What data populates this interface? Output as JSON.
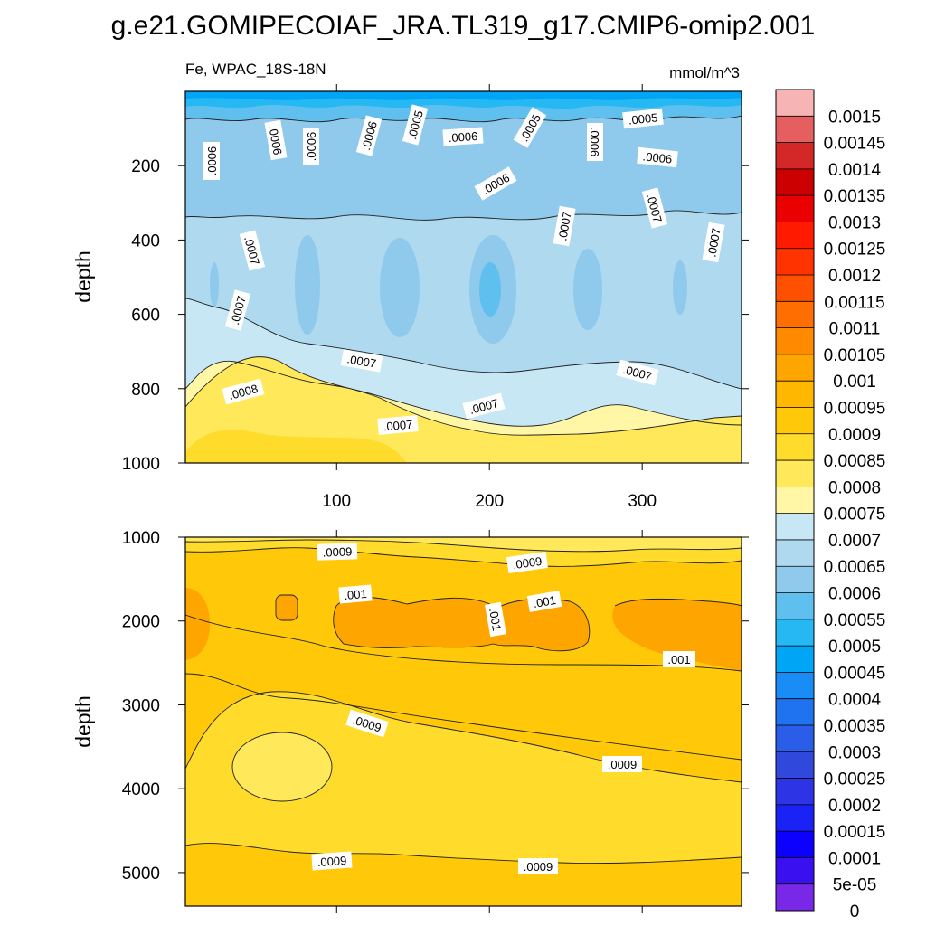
{
  "chart_data": {
    "type": "contour",
    "title": "g.e21.GOMIPECOIAF_JRA.TL319_g17.CMIP6-omip2.001",
    "left_string": "Fe, WPAC_18S-18N",
    "right_string": "mmol/m^3",
    "x": {
      "range": [
        1,
        365
      ],
      "ticks": [
        100,
        200,
        300
      ]
    },
    "panels": [
      {
        "name": "upper",
        "ylabel": "depth",
        "ylim": [
          0,
          1000
        ],
        "yticks": [
          200,
          400,
          600,
          800,
          1000
        ],
        "contour_labels": [
          ".0006",
          ".0006",
          ".0006",
          ".0006",
          ".0005",
          ".0006",
          ".0005",
          ".0006",
          ".0005",
          ".0006",
          ".0006",
          ".0007",
          ".0007",
          ".0007",
          ".0007",
          ".0007",
          ".0007",
          ".0007",
          ".0008",
          ".0007",
          ".0007"
        ]
      },
      {
        "name": "lower",
        "ylabel": "depth",
        "ylim": [
          1000,
          5400
        ],
        "yticks": [
          1000,
          2000,
          3000,
          4000,
          5000
        ],
        "contour_labels": [
          ".0009",
          ".0009",
          ".001",
          ".001",
          ".001",
          ".001",
          ".0009",
          ".0009",
          ".0009",
          ".0009"
        ]
      }
    ],
    "colorbar": {
      "labels": [
        "0.0015",
        "0.00145",
        "0.0014",
        "0.00135",
        "0.0013",
        "0.00125",
        "0.0012",
        "0.00115",
        "0.0011",
        "0.00105",
        "0.001",
        "0.00095",
        "0.0009",
        "0.00085",
        "0.0008",
        "0.00075",
        "0.0007",
        "0.00065",
        "0.0006",
        "0.00055",
        "0.0005",
        "0.00045",
        "0.0004",
        "0.00035",
        "0.0003",
        "0.00025",
        "0.0002",
        "0.00015",
        "0.0001",
        "5e-05",
        "0"
      ],
      "colors": [
        "#f7b4b5",
        "#e65f60",
        "#d42828",
        "#cc0000",
        "#ea0000",
        "#ff1a00",
        "#ff3300",
        "#ff5000",
        "#ff6e00",
        "#ff8a00",
        "#ffa500",
        "#ffb700",
        "#ffc90a",
        "#ffdb2c",
        "#ffe95a",
        "#fff6a6",
        "#c7e7f4",
        "#aed9ef",
        "#8fcaec",
        "#5fc0ef",
        "#26b8f2",
        "#00a5f5",
        "#1a8cf5",
        "#1f73f0",
        "#2a5ee8",
        "#3048dc",
        "#2d34e6",
        "#1a22f5",
        "#0c00ff",
        "#3a10f0",
        "#7a28e8"
      ]
    }
  }
}
